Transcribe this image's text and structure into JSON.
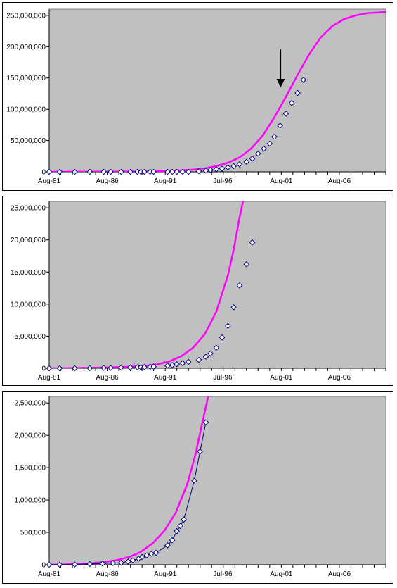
{
  "chart_data": [
    {
      "type": "scatter",
      "x_ticks": [
        "Aug-81",
        "Aug-86",
        "Aug-91",
        "Jul-96",
        "Aug-01",
        "Aug-06"
      ],
      "x_range": [
        1981.6,
        2010.6
      ],
      "ylim": [
        0,
        260000000
      ],
      "y_ticks": [
        "0",
        "50,000,000",
        "100,000,000",
        "150,000,000",
        "200,000,000",
        "250,000,000"
      ],
      "y_tick_values": [
        0,
        50000000,
        100000000,
        150000000,
        200000000,
        250000000
      ],
      "grid": false,
      "plot_bg": "#c0c0c0",
      "fit_color": "#ff00ff",
      "annotation": {
        "type": "arrow",
        "x": 2001.55,
        "y_from": 196000000,
        "y_to": 135000000
      },
      "fit_curve": [
        [
          1981.6,
          0
        ],
        [
          1985,
          60000
        ],
        [
          1988,
          250000
        ],
        [
          1990,
          600000
        ],
        [
          1992,
          1400000
        ],
        [
          1994,
          3500000
        ],
        [
          1995,
          5500000
        ],
        [
          1996,
          9000000
        ],
        [
          1997,
          14500000
        ],
        [
          1998,
          23000000
        ],
        [
          1999,
          37000000
        ],
        [
          2000,
          58000000
        ],
        [
          2001,
          87000000
        ],
        [
          2002,
          120000000
        ],
        [
          2003,
          155000000
        ],
        [
          2004,
          188000000
        ],
        [
          2005,
          215000000
        ],
        [
          2006,
          233000000
        ],
        [
          2007,
          244000000
        ],
        [
          2008,
          250000000
        ],
        [
          2009,
          253500000
        ],
        [
          2010.6,
          255500000
        ]
      ],
      "points": [
        [
          1981.6,
          0
        ],
        [
          1982.5,
          0
        ],
        [
          1983.8,
          0
        ],
        [
          1985.1,
          0
        ],
        [
          1986.3,
          0
        ],
        [
          1986.9,
          0
        ],
        [
          1987.8,
          0
        ],
        [
          1988.6,
          0
        ],
        [
          1989.2,
          0
        ],
        [
          1989.5,
          0
        ],
        [
          1989.8,
          0
        ],
        [
          1990.3,
          0
        ],
        [
          1990.6,
          0
        ],
        [
          1991.8,
          0
        ],
        [
          1992.2,
          0
        ],
        [
          1992.6,
          0
        ],
        [
          1993.1,
          0
        ],
        [
          1993.6,
          0
        ],
        [
          1994.5,
          1000000
        ],
        [
          1995.1,
          2000000
        ],
        [
          1995.5,
          3000000
        ],
        [
          1996.0,
          4000000
        ],
        [
          1996.5,
          5000000
        ],
        [
          1997.0,
          7000000
        ],
        [
          1997.5,
          9000000
        ],
        [
          1998.0,
          12000000
        ],
        [
          1998.6,
          16000000
        ],
        [
          1999.1,
          21000000
        ],
        [
          1999.6,
          29000000
        ],
        [
          2000.1,
          37000000
        ],
        [
          2000.6,
          45000000
        ],
        [
          2001.0,
          56000000
        ],
        [
          2001.5,
          74000000
        ],
        [
          2002.0,
          93000000
        ],
        [
          2002.5,
          110000000
        ],
        [
          2003.0,
          126000000
        ],
        [
          2003.5,
          147000000
        ]
      ]
    },
    {
      "type": "scatter",
      "x_ticks": [
        "Aug-81",
        "Aug-86",
        "Aug-91",
        "Jul-96",
        "Aug-01",
        "Aug-06"
      ],
      "x_range": [
        1981.6,
        2010.6
      ],
      "ylim": [
        0,
        26000000
      ],
      "y_ticks": [
        "0",
        "5,000,000",
        "10,000,000",
        "15,000,000",
        "20,000,000",
        "25,000,000"
      ],
      "y_tick_values": [
        0,
        5000000,
        10000000,
        15000000,
        20000000,
        25000000
      ],
      "grid": false,
      "plot_bg": "#c0c0c0",
      "fit_color": "#ff00ff",
      "fit_curve": [
        [
          1981.6,
          0
        ],
        [
          1984,
          40000
        ],
        [
          1986,
          100000
        ],
        [
          1988,
          200000
        ],
        [
          1989,
          280000
        ],
        [
          1990,
          400000
        ],
        [
          1991,
          650000
        ],
        [
          1992,
          1100000
        ],
        [
          1993,
          1900000
        ],
        [
          1994,
          3200000
        ],
        [
          1995,
          5300000
        ],
        [
          1996,
          8800000
        ],
        [
          1997,
          14500000
        ],
        [
          1997.5,
          18500000
        ],
        [
          1998,
          23500000
        ],
        [
          1998.3,
          26000000
        ]
      ],
      "points": [
        [
          1981.6,
          0
        ],
        [
          1982.5,
          0
        ],
        [
          1983.8,
          10000
        ],
        [
          1985.1,
          20000
        ],
        [
          1986.3,
          50000
        ],
        [
          1986.9,
          60000
        ],
        [
          1987.8,
          90000
        ],
        [
          1988.6,
          130000
        ],
        [
          1989.2,
          150000
        ],
        [
          1989.5,
          170000
        ],
        [
          1989.8,
          180000
        ],
        [
          1990.3,
          220000
        ],
        [
          1990.6,
          250000
        ],
        [
          1991.8,
          400000
        ],
        [
          1992.2,
          500000
        ],
        [
          1992.6,
          650000
        ],
        [
          1993.1,
          800000
        ],
        [
          1993.6,
          1000000
        ],
        [
          1994.5,
          1300000
        ],
        [
          1995.1,
          1800000
        ],
        [
          1995.5,
          2300000
        ],
        [
          1996.0,
          3200000
        ],
        [
          1996.5,
          4800000
        ],
        [
          1997.0,
          6600000
        ],
        [
          1997.5,
          9500000
        ],
        [
          1998.0,
          12900000
        ],
        [
          1998.6,
          16200000
        ],
        [
          1999.1,
          19600000
        ]
      ]
    },
    {
      "type": "scatter",
      "x_ticks": [
        "Aug-81",
        "Aug-86",
        "Aug-91",
        "Jul-96",
        "Aug-01",
        "Aug-06"
      ],
      "x_range": [
        1981.6,
        2010.6
      ],
      "ylim": [
        0,
        2600000
      ],
      "y_ticks": [
        "0",
        "500,000",
        "1,000,000",
        "1,500,000",
        "2,000,000",
        "2,500,000"
      ],
      "y_tick_values": [
        0,
        500000,
        1000000,
        1500000,
        2000000,
        2500000
      ],
      "grid": false,
      "plot_bg": "#c0c0c0",
      "fit_color": "#ff00ff",
      "points_connected": true,
      "connector_color": "#00007f",
      "fit_curve": [
        [
          1981.6,
          0
        ],
        [
          1983,
          5000
        ],
        [
          1985,
          20000
        ],
        [
          1986.5,
          45000
        ],
        [
          1987.5,
          75000
        ],
        [
          1988.5,
          120000
        ],
        [
          1989.5,
          200000
        ],
        [
          1990.5,
          330000
        ],
        [
          1991.5,
          520000
        ],
        [
          1992.5,
          800000
        ],
        [
          1993.5,
          1250000
        ],
        [
          1994.2,
          1700000
        ],
        [
          1994.8,
          2200000
        ],
        [
          1995.3,
          2600000
        ]
      ],
      "points": [
        [
          1981.6,
          0
        ],
        [
          1982.5,
          1000
        ],
        [
          1983.8,
          5000
        ],
        [
          1985.1,
          12000
        ],
        [
          1986.2,
          18000
        ],
        [
          1987.1,
          26000
        ],
        [
          1987.8,
          30000
        ],
        [
          1988.4,
          50000
        ],
        [
          1988.8,
          68000
        ],
        [
          1989.3,
          95000
        ],
        [
          1989.6,
          120000
        ],
        [
          1990.0,
          145000
        ],
        [
          1990.4,
          170000
        ],
        [
          1990.8,
          185000
        ],
        [
          1991.8,
          300000
        ],
        [
          1992.2,
          380000
        ],
        [
          1992.6,
          520000
        ],
        [
          1992.9,
          600000
        ],
        [
          1993.2,
          700000
        ],
        [
          1994.1,
          1300000
        ],
        [
          1994.6,
          1750000
        ],
        [
          1995.1,
          2200000
        ]
      ]
    }
  ]
}
